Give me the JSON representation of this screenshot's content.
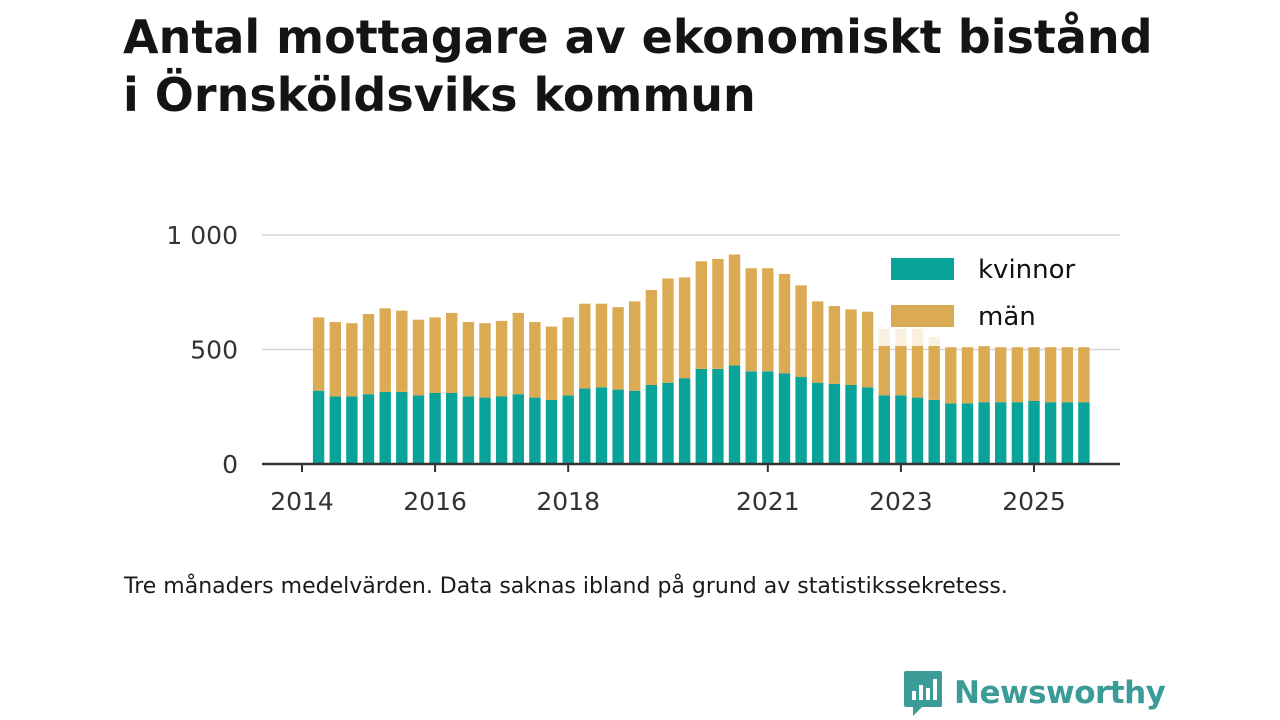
{
  "title": {
    "line1": "Antal mottagare av ekonomiskt bistånd",
    "line2": "i Örnsköldsviks kommun"
  },
  "note": "Tre månaders medelvärden. Data saknas ibland på grund av statistikssekretess.",
  "brand": {
    "name": "Newsworthy",
    "logo_icon": "newsworthy-logo-icon",
    "color": "#3a9b97"
  },
  "chart_data": {
    "type": "bar",
    "stacked": true,
    "x_ticks": [
      {
        "label": "2014",
        "year": 2014.0
      },
      {
        "label": "2016",
        "year": 2016.0
      },
      {
        "label": "2018",
        "year": 2018.0
      },
      {
        "label": "2021",
        "year": 2021.0
      },
      {
        "label": "2023",
        "year": 2023.0
      },
      {
        "label": "2025",
        "year": 2025.0
      }
    ],
    "y_ticks": [
      {
        "label": "0",
        "value": 0
      },
      {
        "label": "500",
        "value": 500
      },
      {
        "label": "1 000",
        "value": 1000
      }
    ],
    "ylim": [
      0,
      1000
    ],
    "xlim": [
      2013.55,
      2026.3
    ],
    "grid": true,
    "legend_position": "top-right",
    "x": [
      2014.25,
      2014.5,
      2014.75,
      2015.0,
      2015.25,
      2015.5,
      2015.75,
      2016.0,
      2016.25,
      2016.5,
      2016.75,
      2017.0,
      2017.25,
      2017.5,
      2017.75,
      2018.0,
      2018.25,
      2018.5,
      2018.75,
      2019.0,
      2019.25,
      2019.5,
      2019.75,
      2020.0,
      2020.25,
      2020.5,
      2020.75,
      2021.0,
      2021.25,
      2021.5,
      2021.75,
      2022.0,
      2022.25,
      2022.5,
      2022.75,
      2023.0,
      2023.25,
      2023.5,
      2023.75,
      2024.0,
      2024.25,
      2024.5,
      2024.75,
      2025.0,
      2025.25,
      2025.5,
      2025.75
    ],
    "series": [
      {
        "name": "kvinnor",
        "color": "#0aa399",
        "values": [
          320,
          295,
          295,
          305,
          315,
          315,
          300,
          310,
          310,
          295,
          290,
          295,
          305,
          290,
          280,
          300,
          330,
          335,
          325,
          320,
          345,
          355,
          375,
          415,
          415,
          430,
          405,
          405,
          395,
          380,
          355,
          350,
          345,
          335,
          300,
          300,
          290,
          280,
          265,
          265,
          270,
          270,
          270,
          275,
          270,
          270,
          270
        ]
      },
      {
        "name": "män",
        "color": "#dbab54",
        "values": [
          320,
          325,
          320,
          350,
          365,
          355,
          330,
          330,
          350,
          325,
          325,
          330,
          355,
          330,
          320,
          340,
          370,
          365,
          360,
          390,
          415,
          455,
          440,
          470,
          480,
          485,
          450,
          450,
          435,
          400,
          355,
          340,
          330,
          330,
          290,
          290,
          300,
          275,
          245,
          245,
          245,
          240,
          240,
          235,
          240,
          240,
          240
        ]
      }
    ]
  }
}
